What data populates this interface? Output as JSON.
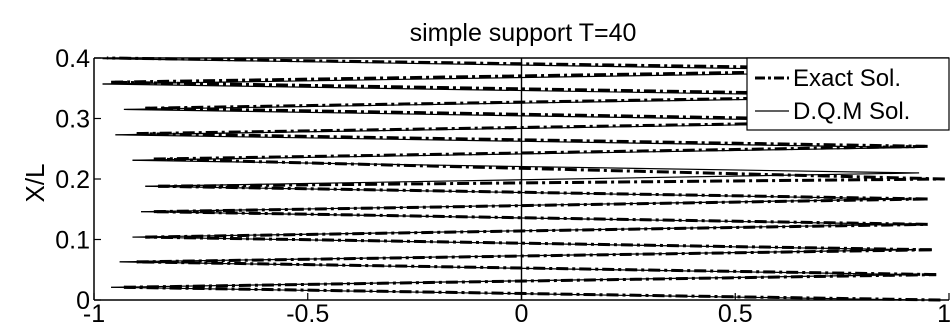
{
  "chart_data": {
    "type": "line",
    "title": "simple support T=40",
    "xlabel": "",
    "ylabel": "X/L",
    "xlim": [
      -1,
      1
    ],
    "ylim": [
      0,
      0.4
    ],
    "xticks": [
      "-1",
      "-0.5",
      "0",
      "0.5",
      "1"
    ],
    "yticks": [
      "0",
      "0.1",
      "0.2",
      "0.3",
      "0.4"
    ],
    "grid": false,
    "legend_position": "top-right",
    "series": [
      {
        "name": "Exact Sol.",
        "style": "dash-dot",
        "color": "#000000",
        "segments": [
          [
            [
              0.98,
              0.0
            ],
            [
              -0.93,
              0.021
            ]
          ],
          [
            [
              -0.93,
              0.021
            ],
            [
              0.97,
              0.042
            ]
          ],
          [
            [
              0.97,
              0.042
            ],
            [
              -0.9,
              0.063
            ]
          ],
          [
            [
              -0.9,
              0.063
            ],
            [
              0.96,
              0.083
            ]
          ],
          [
            [
              0.96,
              0.083
            ],
            [
              -0.88,
              0.104
            ]
          ],
          [
            [
              -0.88,
              0.104
            ],
            [
              0.95,
              0.125
            ]
          ],
          [
            [
              0.95,
              0.125
            ],
            [
              -0.86,
              0.146
            ]
          ],
          [
            [
              -0.86,
              0.146
            ],
            [
              0.95,
              0.167
            ]
          ],
          [
            [
              0.95,
              0.167
            ],
            [
              -0.85,
              0.188
            ]
          ],
          [
            [
              -0.85,
              0.188
            ],
            [
              0.99,
              0.2
            ]
          ],
          [
            [
              0.99,
              0.2
            ],
            [
              -0.86,
              0.233
            ]
          ],
          [
            [
              -0.86,
              0.233
            ],
            [
              0.95,
              0.254
            ]
          ],
          [
            [
              0.95,
              0.254
            ],
            [
              -0.9,
              0.275
            ]
          ],
          [
            [
              -0.9,
              0.275
            ],
            [
              0.96,
              0.296
            ]
          ],
          [
            [
              0.96,
              0.296
            ],
            [
              -0.88,
              0.317
            ]
          ],
          [
            [
              -0.88,
              0.317
            ],
            [
              0.96,
              0.338
            ]
          ],
          [
            [
              0.96,
              0.338
            ],
            [
              -0.96,
              0.36
            ]
          ],
          [
            [
              -0.96,
              0.36
            ],
            [
              0.97,
              0.381
            ]
          ],
          [
            [
              0.97,
              0.381
            ],
            [
              -0.97,
              0.4
            ]
          ]
        ]
      },
      {
        "name": "D.Q.M Sol.",
        "style": "solid",
        "color": "#000000",
        "segments": [
          [
            [
              0.93,
              0.0
            ],
            [
              -0.96,
              0.021
            ]
          ],
          [
            [
              -0.96,
              0.021
            ],
            [
              0.92,
              0.042
            ]
          ],
          [
            [
              0.92,
              0.042
            ],
            [
              -0.94,
              0.063
            ]
          ],
          [
            [
              -0.94,
              0.063
            ],
            [
              0.92,
              0.083
            ]
          ],
          [
            [
              0.92,
              0.083
            ],
            [
              -0.91,
              0.104
            ]
          ],
          [
            [
              -0.91,
              0.104
            ],
            [
              0.91,
              0.125
            ]
          ],
          [
            [
              0.91,
              0.125
            ],
            [
              -0.89,
              0.146
            ]
          ],
          [
            [
              -0.89,
              0.146
            ],
            [
              0.9,
              0.167
            ]
          ],
          [
            [
              0.9,
              0.167
            ],
            [
              -0.88,
              0.188
            ]
          ],
          [
            [
              -0.88,
              0.188
            ],
            [
              0.93,
              0.21
            ]
          ],
          [
            [
              0.93,
              0.21
            ],
            [
              -0.91,
              0.231
            ]
          ],
          [
            [
              -0.91,
              0.231
            ],
            [
              0.92,
              0.252
            ]
          ],
          [
            [
              0.92,
              0.252
            ],
            [
              -0.95,
              0.273
            ]
          ],
          [
            [
              -0.95,
              0.273
            ],
            [
              0.92,
              0.294
            ]
          ],
          [
            [
              0.92,
              0.294
            ],
            [
              -0.93,
              0.315
            ]
          ],
          [
            [
              -0.93,
              0.315
            ],
            [
              0.93,
              0.336
            ]
          ],
          [
            [
              0.93,
              0.336
            ],
            [
              -0.98,
              0.357
            ]
          ],
          [
            [
              -0.98,
              0.357
            ],
            [
              0.94,
              0.378
            ]
          ],
          [
            [
              0.94,
              0.378
            ],
            [
              -0.98,
              0.399
            ]
          ]
        ]
      }
    ],
    "reference_lines": [
      {
        "axis": "x",
        "value": 0
      }
    ]
  }
}
